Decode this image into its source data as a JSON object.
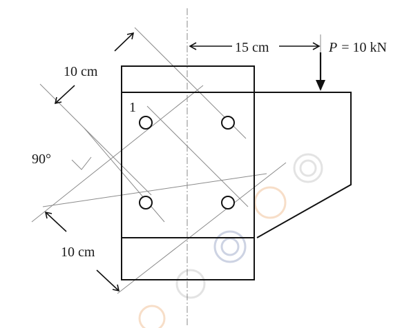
{
  "labels": {
    "horizontal_dim": "15 cm",
    "load": "P = 10 kN",
    "load_symbol": "P",
    "load_value": "= 10 kN",
    "upper_pitch": "10 cm",
    "lower_pitch": "10 cm",
    "angle": "90°",
    "bolt_number": "1"
  },
  "colors": {
    "line": "#111111",
    "construction": "#8a8a8a",
    "watermark_orange": "#e8a060",
    "watermark_blue": "#7080b0",
    "watermark_gray": "#b0b0b0"
  }
}
